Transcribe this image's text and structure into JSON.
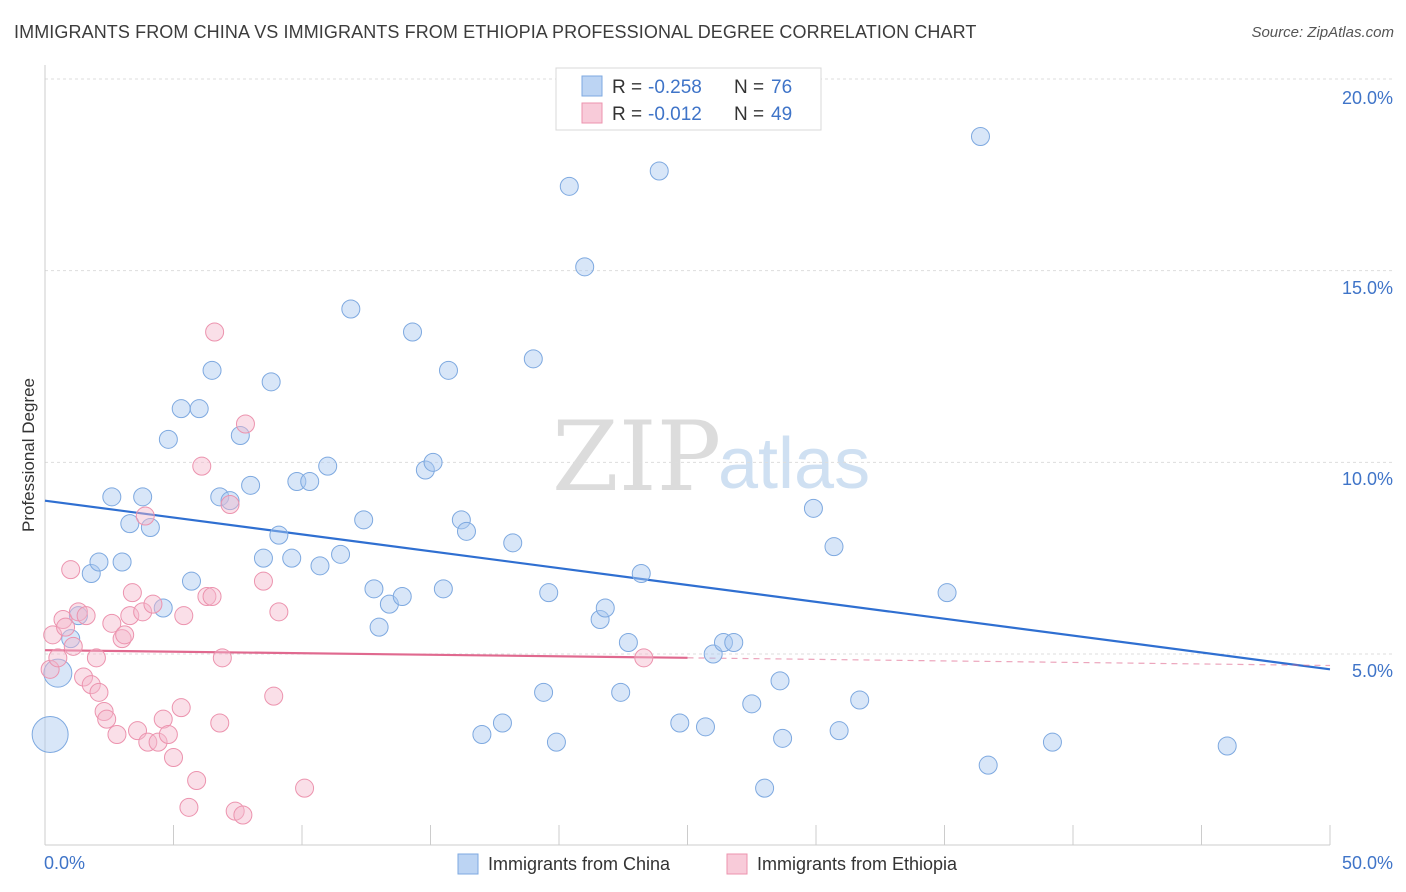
{
  "header": {
    "title": "IMMIGRANTS FROM CHINA VS IMMIGRANTS FROM ETHIOPIA PROFESSIONAL DEGREE CORRELATION CHART",
    "source": "Source: ZipAtlas.com"
  },
  "watermark": {
    "zip": "ZIP",
    "atlas": "atlas"
  },
  "legend_top": [
    {
      "r_label": "R =",
      "r_value": "-0.258",
      "n_label": "N =",
      "n_value": "76",
      "color": "#a9c8ef"
    },
    {
      "r_label": "R =",
      "r_value": "-0.012",
      "n_label": "N =",
      "n_value": "49",
      "color": "#f5b8cb"
    }
  ],
  "legend_bottom": [
    {
      "label": "Immigrants from China",
      "color": "#a9c8ef"
    },
    {
      "label": "Immigrants from Ethiopia",
      "color": "#f5b8cb"
    }
  ],
  "chart_data": {
    "type": "scatter",
    "title": "IMMIGRANTS FROM CHINA VS IMMIGRANTS FROM ETHIOPIA PROFESSIONAL DEGREE CORRELATION CHART",
    "xlabel": "",
    "ylabel": "Professional Degree",
    "xlim": [
      0,
      50
    ],
    "ylim": [
      0,
      20.5
    ],
    "x_tick_labels": [
      "0.0%",
      "50.0%"
    ],
    "y_ticks": [
      5,
      10,
      15,
      20
    ],
    "y_tick_labels": [
      "5.0%",
      "10.0%",
      "15.0%",
      "20.0%"
    ],
    "grid": true,
    "series": [
      {
        "name": "Immigrants from China",
        "color": "#a9c8ef",
        "stroke": "#7ea9e0",
        "trend": {
          "x": [
            0,
            50
          ],
          "y": [
            9.0,
            4.6
          ],
          "color": "#2f6fd1"
        },
        "points": [
          [
            0.2,
            2.9,
            3
          ],
          [
            0.5,
            4.5,
            2
          ],
          [
            1.0,
            5.4,
            1
          ],
          [
            1.3,
            6.0,
            1
          ],
          [
            1.8,
            7.1,
            1
          ],
          [
            2.1,
            7.4,
            1
          ],
          [
            2.6,
            9.1,
            1
          ],
          [
            3.0,
            7.4,
            1
          ],
          [
            3.3,
            8.4,
            1
          ],
          [
            3.8,
            9.1,
            1
          ],
          [
            4.1,
            8.3,
            1
          ],
          [
            4.6,
            6.2,
            1
          ],
          [
            4.8,
            10.6,
            1
          ],
          [
            5.3,
            11.4,
            1
          ],
          [
            6.0,
            11.4,
            1
          ],
          [
            5.7,
            6.9,
            1
          ],
          [
            6.5,
            12.4,
            1
          ],
          [
            6.8,
            9.1,
            1
          ],
          [
            7.2,
            9.0,
            1
          ],
          [
            7.6,
            10.7,
            1
          ],
          [
            8.0,
            9.4,
            1
          ],
          [
            8.5,
            7.5,
            1
          ],
          [
            8.8,
            12.1,
            1
          ],
          [
            9.1,
            8.1,
            1
          ],
          [
            9.6,
            7.5,
            1
          ],
          [
            9.8,
            9.5,
            1
          ],
          [
            10.3,
            9.5,
            1
          ],
          [
            10.7,
            7.3,
            1
          ],
          [
            11.0,
            9.9,
            1
          ],
          [
            11.5,
            7.6,
            1
          ],
          [
            11.9,
            14.0,
            1
          ],
          [
            12.4,
            8.5,
            1
          ],
          [
            12.8,
            6.7,
            1
          ],
          [
            13.0,
            5.7,
            1
          ],
          [
            13.4,
            6.3,
            1
          ],
          [
            13.9,
            6.5,
            1
          ],
          [
            14.3,
            13.4,
            1
          ],
          [
            14.8,
            9.8,
            1
          ],
          [
            15.1,
            10.0,
            1
          ],
          [
            15.5,
            6.7,
            1
          ],
          [
            15.7,
            12.4,
            1
          ],
          [
            16.2,
            8.5,
            1
          ],
          [
            16.4,
            8.2,
            1
          ],
          [
            17.0,
            2.9,
            1
          ],
          [
            17.8,
            3.2,
            1
          ],
          [
            18.2,
            7.9,
            1
          ],
          [
            19.0,
            12.7,
            1
          ],
          [
            19.4,
            4.0,
            1
          ],
          [
            19.6,
            6.6,
            1
          ],
          [
            19.9,
            2.7,
            1
          ],
          [
            20.4,
            17.2,
            1
          ],
          [
            21.0,
            15.1,
            1
          ],
          [
            21.6,
            5.9,
            1
          ],
          [
            21.8,
            6.2,
            1
          ],
          [
            22.4,
            4.0,
            1
          ],
          [
            22.7,
            5.3,
            1
          ],
          [
            23.2,
            7.1,
            1
          ],
          [
            23.9,
            17.6,
            1
          ],
          [
            24.7,
            3.2,
            1
          ],
          [
            25.7,
            3.1,
            1
          ],
          [
            26.0,
            5.0,
            1
          ],
          [
            26.4,
            5.3,
            1
          ],
          [
            26.8,
            5.3,
            1
          ],
          [
            27.5,
            3.7,
            1
          ],
          [
            28.0,
            1.5,
            1
          ],
          [
            28.6,
            4.3,
            1
          ],
          [
            28.7,
            2.8,
            1
          ],
          [
            29.9,
            8.8,
            1
          ],
          [
            30.7,
            7.8,
            1
          ],
          [
            30.9,
            3.0,
            1
          ],
          [
            31.7,
            3.8,
            1
          ],
          [
            35.1,
            6.6,
            1
          ],
          [
            36.4,
            18.5,
            1
          ],
          [
            36.7,
            2.1,
            1
          ],
          [
            39.2,
            2.7,
            1
          ],
          [
            46.0,
            2.6,
            1
          ]
        ]
      },
      {
        "name": "Immigrants from Ethiopia",
        "color": "#f5b8cb",
        "stroke": "#ec93ae",
        "trend": {
          "x": [
            0,
            25
          ],
          "y": [
            5.1,
            4.9
          ],
          "color": "#e0698f"
        },
        "points": [
          [
            0.2,
            4.6,
            1
          ],
          [
            0.3,
            5.5,
            1
          ],
          [
            0.5,
            4.9,
            1
          ],
          [
            0.7,
            5.9,
            1
          ],
          [
            0.8,
            5.7,
            1
          ],
          [
            1.0,
            7.2,
            1
          ],
          [
            1.1,
            5.2,
            1
          ],
          [
            1.3,
            6.1,
            1
          ],
          [
            1.5,
            4.4,
            1
          ],
          [
            1.6,
            6.0,
            1
          ],
          [
            1.8,
            4.2,
            1
          ],
          [
            2.0,
            4.9,
            1
          ],
          [
            2.1,
            4.0,
            1
          ],
          [
            2.3,
            3.5,
            1
          ],
          [
            2.4,
            3.3,
            1
          ],
          [
            2.6,
            5.8,
            1
          ],
          [
            2.8,
            2.9,
            1
          ],
          [
            3.0,
            5.4,
            1
          ],
          [
            3.1,
            5.5,
            1
          ],
          [
            3.3,
            6.0,
            1
          ],
          [
            3.4,
            6.6,
            1
          ],
          [
            3.6,
            3.0,
            1
          ],
          [
            3.8,
            6.1,
            1
          ],
          [
            3.9,
            8.6,
            1
          ],
          [
            4.0,
            2.7,
            1
          ],
          [
            4.2,
            6.3,
            1
          ],
          [
            4.4,
            2.7,
            1
          ],
          [
            4.6,
            3.3,
            1
          ],
          [
            4.8,
            2.9,
            1
          ],
          [
            5.0,
            2.3,
            1
          ],
          [
            5.3,
            3.6,
            1
          ],
          [
            5.4,
            6.0,
            1
          ],
          [
            5.6,
            1.0,
            1
          ],
          [
            5.9,
            1.7,
            1
          ],
          [
            6.1,
            9.9,
            1
          ],
          [
            6.3,
            6.5,
            1
          ],
          [
            6.5,
            6.5,
            1
          ],
          [
            6.6,
            13.4,
            1
          ],
          [
            6.8,
            3.2,
            1
          ],
          [
            6.9,
            4.9,
            1
          ],
          [
            7.2,
            8.9,
            1
          ],
          [
            7.4,
            0.9,
            1
          ],
          [
            7.7,
            0.8,
            1
          ],
          [
            7.8,
            11.0,
            1
          ],
          [
            8.5,
            6.9,
            1
          ],
          [
            8.9,
            3.9,
            1
          ],
          [
            9.1,
            6.1,
            1
          ],
          [
            10.1,
            1.5,
            1
          ],
          [
            23.3,
            4.9,
            1
          ]
        ]
      }
    ]
  }
}
